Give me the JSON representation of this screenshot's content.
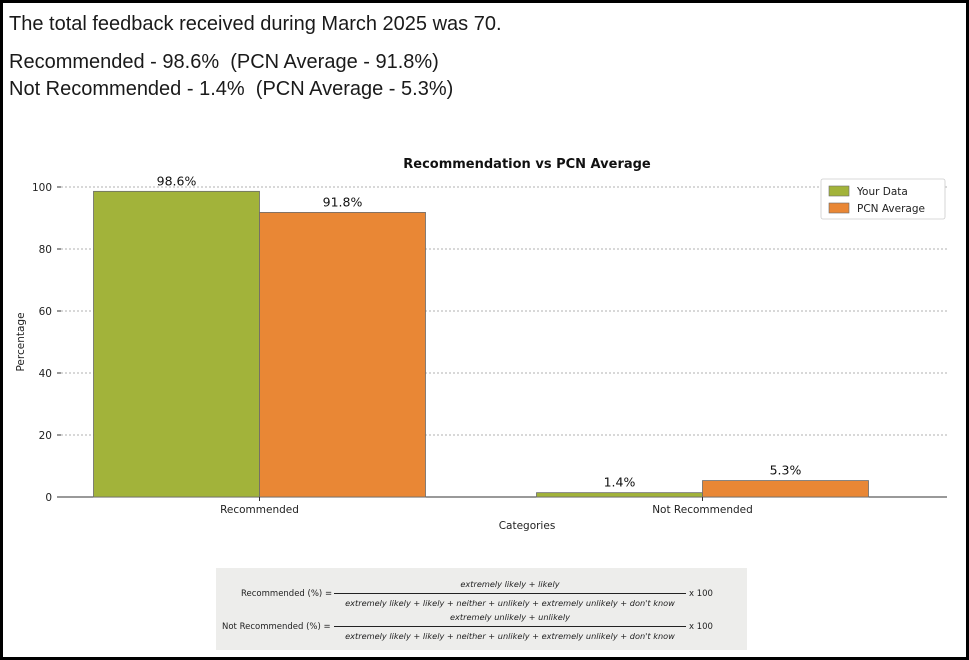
{
  "header": {
    "line1": "The total feedback received during March 2025 was 70.",
    "line2": "Recommended - 98.6%  (PCN Average - 91.8%)",
    "line3": "Not Recommended - 1.4%  (PCN Average - 5.3%)"
  },
  "chart_data": {
    "type": "bar",
    "title": "Recommendation vs PCN Average",
    "xlabel": "Categories",
    "ylabel": "Percentage",
    "categories": [
      "Recommended",
      "Not Recommended"
    ],
    "series": [
      {
        "name": "Your Data",
        "values": [
          98.6,
          1.4
        ],
        "labels": [
          "98.6%",
          "1.4%"
        ],
        "color": "#a2b33a"
      },
      {
        "name": "PCN Average",
        "values": [
          91.8,
          5.3
        ],
        "labels": [
          "91.8%",
          "5.3%"
        ],
        "color": "#e98735"
      }
    ],
    "ylim": [
      0,
      100
    ],
    "yticks": [
      0,
      20,
      40,
      60,
      80,
      100
    ],
    "grid": true,
    "legend": "top-right"
  },
  "formulas": [
    {
      "label": "Recommended (%) =",
      "numerator": "extremely likely + likely",
      "denominator": "extremely likely + likely + neither + unlikely + extremely unlikely + don't know",
      "multiplier": "x 100"
    },
    {
      "label": "Not Recommended (%) =",
      "numerator": "extremely unlikely + unlikely",
      "denominator": "extremely likely + likely + neither + unlikely + extremely unlikely + don't know",
      "multiplier": "x 100"
    }
  ]
}
